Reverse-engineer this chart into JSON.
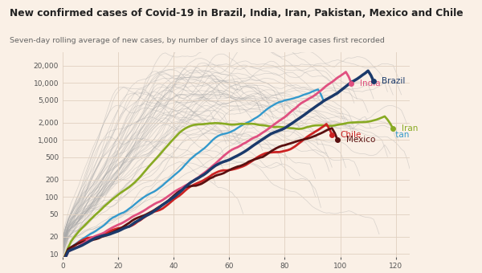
{
  "title": "New confirmed cases of Covid-19 in Brazil, India, Iran, Pakistan, Mexico and Chile",
  "subtitle": "Seven-day rolling average of new cases, by number of days since 10 average cases first recorded",
  "background_color": "#faf0e6",
  "yticks": [
    10,
    20,
    50,
    100,
    200,
    500,
    1000,
    2000,
    5000,
    10000,
    20000
  ],
  "ytick_labels": [
    "10",
    "20",
    "50",
    "100",
    "200",
    "500",
    "1,000",
    "2,000",
    "5,000",
    "10,000",
    "20,000"
  ],
  "brazil_color": "#1b3a6b",
  "india_color": "#e05080",
  "chile_color": "#cc2222",
  "mexico_color": "#5a1010",
  "pakistan_color": "#3399cc",
  "iran_color": "#88aa22",
  "iran_old_color": "#6644aa",
  "gray_color": "#aaaaaa",
  "grid_color": "#e0d0c0",
  "label_iran_tan": "tan"
}
